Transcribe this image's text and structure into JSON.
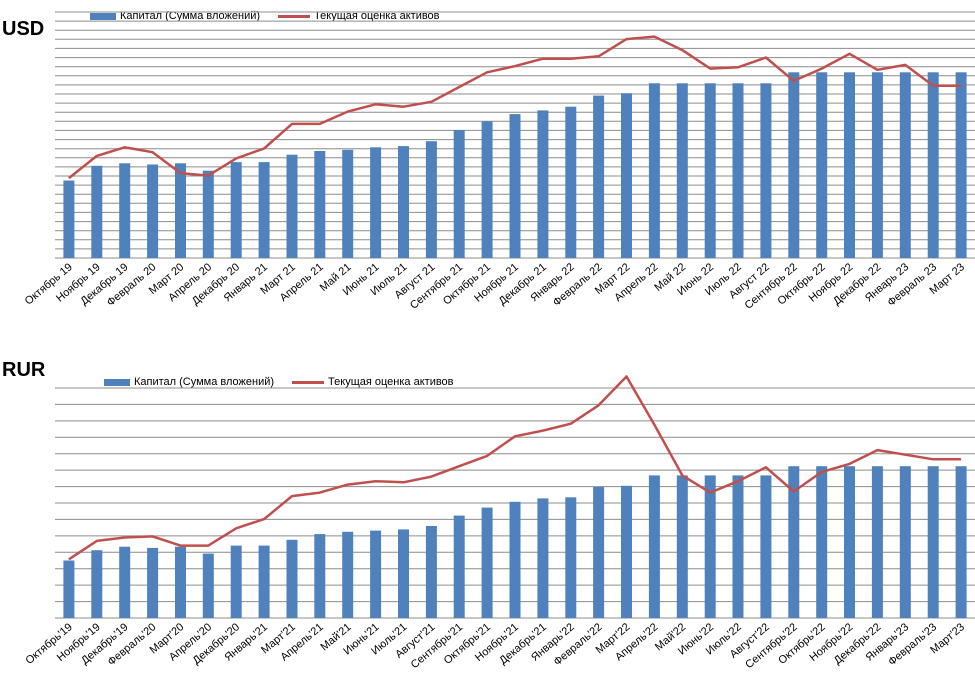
{
  "colors": {
    "bar": "#4F81BD",
    "line": "#C0504D",
    "grid": "#8C8C8C"
  },
  "chart_data": [
    {
      "type": "bar",
      "title": "USD",
      "legend": {
        "position": "top",
        "bar_label": "Капитал  (Сумма вложений)",
        "line_label": "Текущая оценка активов"
      },
      "grid": true,
      "ylim": [
        0,
        100
      ],
      "categories": [
        "Октябрь 19",
        "Ноябрь 19",
        "Декабрь 19",
        "Февраль 20",
        "Март 20",
        "Апрель 20",
        "Декабрь 20",
        "Январь 21",
        "Март 21",
        "Апрель 21",
        "Май 21",
        "Июнь 21",
        "Июль 21",
        "Август 21",
        "Сентябрь 21",
        "Октябрь 21",
        "Ноябрь 21",
        "Декабрь 21",
        "Январь 22",
        "Февраль 22",
        "Март 22",
        "Апрель 22",
        "Май 22",
        "Июнь 22",
        "Июль 22",
        "Август 22",
        "Сентябрь 22",
        "Октябрь 22",
        "Ноябрь 22",
        "Декабрь 22",
        "Январь 23",
        "Февраль 23",
        "Март 23"
      ],
      "series": [
        {
          "name": "Капитал  (Сумма вложений)",
          "type": "bar",
          "values": [
            31.5,
            37.5,
            38.5,
            38,
            38.5,
            35.5,
            39,
            39,
            42,
            43.5,
            44,
            45,
            45.5,
            47.5,
            52,
            55.5,
            58.5,
            60,
            61.5,
            66,
            67,
            71,
            71,
            71,
            71,
            71,
            75.5,
            75.5,
            75.5,
            75.5,
            75.5,
            75.5,
            75.5
          ]
        },
        {
          "name": "Текущая оценка активов",
          "type": "line",
          "values": [
            32.5,
            41.5,
            45,
            43,
            34.5,
            33.5,
            40.5,
            44.5,
            54.5,
            54.5,
            59.5,
            62.5,
            61.5,
            63.5,
            69.5,
            75.5,
            78,
            81,
            81,
            82,
            89,
            90,
            84.5,
            77,
            77.5,
            81.5,
            72,
            77,
            83,
            76.5,
            78.5,
            70,
            70
          ]
        }
      ]
    },
    {
      "type": "bar",
      "title": "RUR",
      "legend": {
        "position": "top",
        "bar_label": "Капитал (Сумма вложений)",
        "line_label": "Текущая оценка активов"
      },
      "grid": true,
      "ylim": [
        0,
        100
      ],
      "categories": [
        "Октябрь'19",
        "Ноябрь'19",
        "Декабрь'19",
        "Февраль'20",
        "Март'20",
        "Апрель'20",
        "Декабрь'20",
        "Январь'21",
        "Март'21",
        "Апрель'21",
        "Май'21",
        "Июнь'21",
        "Июль'21",
        "Август'21",
        "Сентябрь'21",
        "Октябрь'21",
        "Ноябрь'21",
        "Декабрь'21",
        "Январь'22",
        "Февраль'22",
        "Март'22",
        "Апрель'22",
        "Май'22",
        "Июнь'22",
        "Июль'22",
        "Август'22",
        "Сентябрь'22",
        "Октябрь'22",
        "Ноябрь'22",
        "Декабрь'22",
        "Январь'23",
        "Февраль'23",
        "Март'23"
      ],
      "series": [
        {
          "name": "Капитал (Сумма вложений)",
          "type": "bar",
          "values": [
            25,
            29.5,
            31,
            30.5,
            31,
            28,
            31.5,
            31.5,
            34,
            36.5,
            37.5,
            38,
            38.5,
            40,
            44.5,
            48,
            50.5,
            52,
            52.5,
            57,
            57.5,
            62,
            62,
            62,
            62,
            62,
            66,
            66,
            66,
            66,
            66,
            66,
            66
          ]
        },
        {
          "name": "Текущая оценка активов",
          "type": "line",
          "values": [
            25.5,
            33.5,
            35,
            35.5,
            31.5,
            31.5,
            39,
            43,
            53,
            54.5,
            58,
            59.5,
            59,
            61.5,
            66,
            70.5,
            79,
            81.5,
            84.5,
            92.5,
            105,
            84,
            62,
            54.5,
            59.5,
            65.5,
            55,
            63.5,
            67,
            73,
            71,
            69,
            69
          ]
        }
      ]
    }
  ]
}
